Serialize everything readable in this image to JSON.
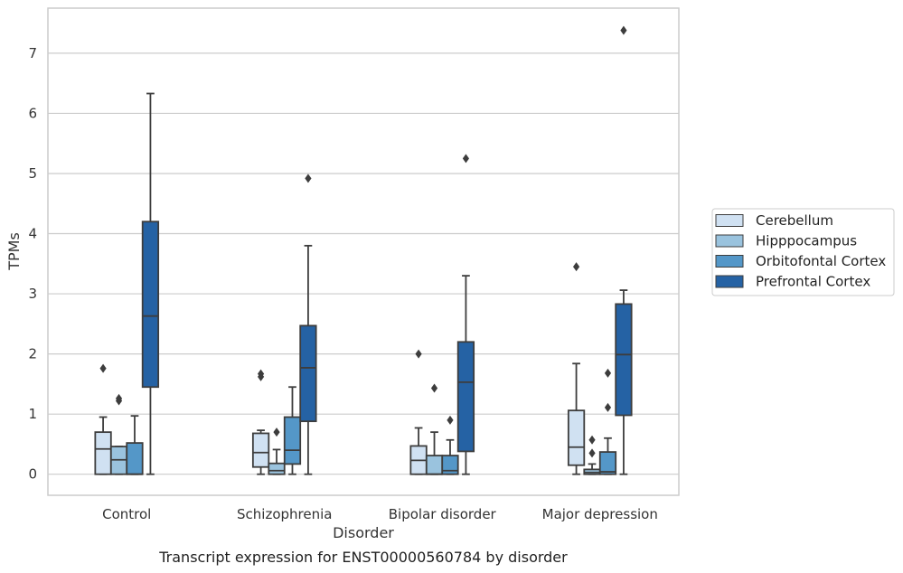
{
  "chart_data": {
    "type": "box",
    "title": "",
    "caption": "Transcript expression for ENST00000560784 by disorder",
    "xlabel": "Disorder",
    "ylabel": "TPMs",
    "ylim": [
      -0.35,
      7.75
    ],
    "yticks": [
      0,
      1,
      2,
      3,
      4,
      5,
      6,
      7
    ],
    "grid": "horizontal",
    "legend_placement": "right",
    "categories": [
      "Control",
      "Schizophrenia",
      "Bipolar disorder",
      "Major depression"
    ],
    "series": [
      {
        "name": "Cerebellum",
        "color": "#d0e1f2",
        "boxes": [
          {
            "q1": 0.0,
            "median": 0.42,
            "q3": 0.7,
            "whisker_low": 0.0,
            "whisker_high": 0.95,
            "outliers": [
              1.76
            ]
          },
          {
            "q1": 0.12,
            "median": 0.36,
            "q3": 0.68,
            "whisker_low": 0.0,
            "whisker_high": 0.73,
            "outliers": [
              1.62,
              1.67
            ]
          },
          {
            "q1": 0.0,
            "median": 0.23,
            "q3": 0.47,
            "whisker_low": 0.0,
            "whisker_high": 0.77,
            "outliers": [
              2.0
            ]
          },
          {
            "q1": 0.15,
            "median": 0.45,
            "q3": 1.06,
            "whisker_low": 0.0,
            "whisker_high": 1.84,
            "outliers": [
              3.45
            ]
          }
        ]
      },
      {
        "name": "Hipppocampus",
        "color": "#9ac3de",
        "boxes": [
          {
            "q1": 0.0,
            "median": 0.24,
            "q3": 0.46,
            "whisker_low": 0.0,
            "whisker_high": 0.46,
            "outliers": [
              1.22,
              1.26
            ]
          },
          {
            "q1": 0.0,
            "median": 0.06,
            "q3": 0.18,
            "whisker_low": 0.0,
            "whisker_high": 0.41,
            "outliers": [
              0.7
            ]
          },
          {
            "q1": 0.0,
            "median": 0.0,
            "q3": 0.31,
            "whisker_low": 0.0,
            "whisker_high": 0.7,
            "outliers": [
              1.43
            ]
          },
          {
            "q1": 0.0,
            "median": 0.03,
            "q3": 0.08,
            "whisker_low": 0.0,
            "whisker_high": 0.17,
            "outliers": [
              0.35,
              0.57
            ]
          }
        ]
      },
      {
        "name": "Orbitofontal Cortex",
        "color": "#5497c8",
        "boxes": [
          {
            "q1": 0.0,
            "median": 0.0,
            "q3": 0.52,
            "whisker_low": 0.0,
            "whisker_high": 0.97,
            "outliers": []
          },
          {
            "q1": 0.17,
            "median": 0.4,
            "q3": 0.95,
            "whisker_low": 0.0,
            "whisker_high": 1.45,
            "outliers": []
          },
          {
            "q1": 0.0,
            "median": 0.06,
            "q3": 0.31,
            "whisker_low": 0.0,
            "whisker_high": 0.57,
            "outliers": [
              0.9
            ]
          },
          {
            "q1": 0.0,
            "median": 0.04,
            "q3": 0.37,
            "whisker_low": 0.0,
            "whisker_high": 0.6,
            "outliers": [
              1.11,
              1.68
            ]
          }
        ]
      },
      {
        "name": "Prefrontal Cortex",
        "color": "#2562a4",
        "boxes": [
          {
            "q1": 1.45,
            "median": 2.63,
            "q3": 4.2,
            "whisker_low": 0.0,
            "whisker_high": 6.33,
            "outliers": []
          },
          {
            "q1": 0.88,
            "median": 1.77,
            "q3": 2.47,
            "whisker_low": 0.0,
            "whisker_high": 3.8,
            "outliers": [
              4.92
            ]
          },
          {
            "q1": 0.38,
            "median": 1.53,
            "q3": 2.2,
            "whisker_low": 0.0,
            "whisker_high": 3.3,
            "outliers": [
              5.25
            ]
          },
          {
            "q1": 0.98,
            "median": 1.99,
            "q3": 2.83,
            "whisker_low": 0.0,
            "whisker_high": 3.06,
            "outliers": [
              7.38
            ]
          }
        ]
      }
    ]
  }
}
